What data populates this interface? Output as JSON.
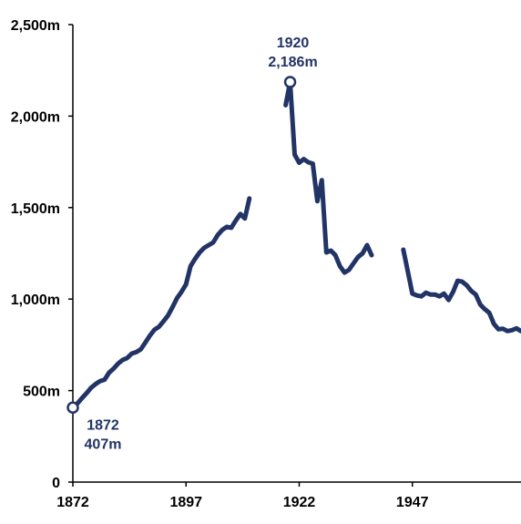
{
  "chart_data": {
    "type": "line",
    "xlim": [
      1872,
      1971
    ],
    "ylim": [
      0,
      2500
    ],
    "x_ticks": [
      {
        "value": 1872,
        "label": "1872"
      },
      {
        "value": 1897,
        "label": "1897"
      },
      {
        "value": 1922,
        "label": "1922"
      },
      {
        "value": 1947,
        "label": "1947"
      }
    ],
    "y_ticks": [
      {
        "value": 0,
        "label": "0"
      },
      {
        "value": 500,
        "label": "500m"
      },
      {
        "value": 1000,
        "label": "1,000m"
      },
      {
        "value": 1500,
        "label": "1,500m"
      },
      {
        "value": 2000,
        "label": "2,000m"
      },
      {
        "value": 2500,
        "label": "2,500m"
      }
    ],
    "grid": false,
    "series_color": "#223466",
    "segments": [
      [
        [
          1872,
          407
        ],
        [
          1873,
          430
        ],
        [
          1874,
          458
        ],
        [
          1875,
          485
        ],
        [
          1876,
          515
        ],
        [
          1877,
          535
        ],
        [
          1878,
          552
        ],
        [
          1879,
          560
        ],
        [
          1880,
          598
        ],
        [
          1881,
          620
        ],
        [
          1882,
          648
        ],
        [
          1883,
          668
        ],
        [
          1884,
          678
        ],
        [
          1885,
          702
        ],
        [
          1886,
          710
        ],
        [
          1887,
          725
        ],
        [
          1888,
          762
        ],
        [
          1889,
          800
        ],
        [
          1890,
          832
        ],
        [
          1891,
          848
        ],
        [
          1892,
          878
        ],
        [
          1893,
          910
        ],
        [
          1894,
          955
        ],
        [
          1895,
          1005
        ],
        [
          1896,
          1040
        ],
        [
          1897,
          1080
        ],
        [
          1898,
          1180
        ],
        [
          1899,
          1220
        ],
        [
          1900,
          1255
        ],
        [
          1901,
          1280
        ],
        [
          1902,
          1295
        ],
        [
          1903,
          1310
        ],
        [
          1904,
          1350
        ],
        [
          1905,
          1378
        ],
        [
          1906,
          1395
        ],
        [
          1907,
          1390
        ],
        [
          1908,
          1430
        ],
        [
          1909,
          1465
        ],
        [
          1910,
          1440
        ],
        [
          1911,
          1550
        ]
      ],
      [
        [
          1919,
          2060
        ],
        [
          1920,
          2186
        ],
        [
          1921,
          1790
        ],
        [
          1922,
          1745
        ],
        [
          1923,
          1765
        ],
        [
          1924,
          1748
        ],
        [
          1925,
          1740
        ],
        [
          1926,
          1535
        ],
        [
          1927,
          1650
        ],
        [
          1928,
          1255
        ],
        [
          1929,
          1265
        ],
        [
          1930,
          1240
        ],
        [
          1931,
          1180
        ],
        [
          1932,
          1145
        ],
        [
          1933,
          1160
        ],
        [
          1934,
          1195
        ],
        [
          1935,
          1230
        ],
        [
          1936,
          1250
        ],
        [
          1937,
          1295
        ],
        [
          1938,
          1240
        ]
      ],
      [
        [
          1945,
          1270
        ],
        [
          1946,
          1150
        ],
        [
          1947,
          1030
        ],
        [
          1948,
          1020
        ],
        [
          1949,
          1015
        ],
        [
          1950,
          1035
        ],
        [
          1951,
          1025
        ],
        [
          1952,
          1025
        ],
        [
          1953,
          1015
        ],
        [
          1954,
          1030
        ],
        [
          1955,
          995
        ],
        [
          1956,
          1040
        ],
        [
          1957,
          1100
        ],
        [
          1958,
          1095
        ],
        [
          1959,
          1075
        ],
        [
          1960,
          1045
        ],
        [
          1961,
          1025
        ],
        [
          1962,
          970
        ],
        [
          1963,
          945
        ],
        [
          1964,
          925
        ],
        [
          1965,
          865
        ],
        [
          1966,
          835
        ],
        [
          1967,
          838
        ],
        [
          1968,
          825
        ],
        [
          1969,
          830
        ],
        [
          1970,
          840
        ],
        [
          1971,
          825
        ]
      ]
    ],
    "annotations": [
      {
        "x": 1872,
        "y": 407,
        "year": "1872",
        "value": "407m",
        "position": "below-right"
      },
      {
        "x": 1920,
        "y": 2186,
        "year": "1920",
        "value": "2,186m",
        "position": "above"
      }
    ]
  }
}
